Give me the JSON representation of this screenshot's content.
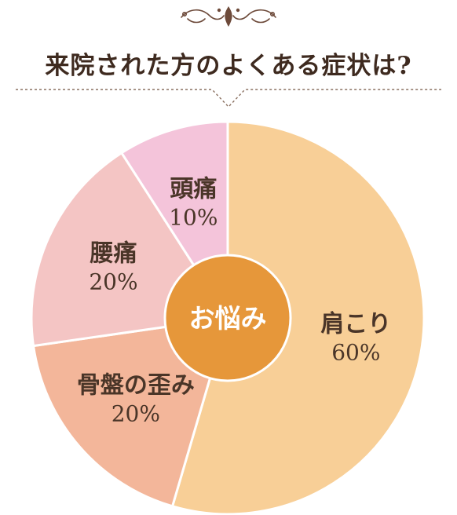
{
  "header": {
    "title": "来院された方のよくある症状は?"
  },
  "chart_data": {
    "type": "pie",
    "center_label": "お悩み",
    "slices": [
      {
        "label": "肩こり",
        "value": 60,
        "value_label": "60%",
        "color": "#f8cf97"
      },
      {
        "label": "骨盤の歪み",
        "value": 20,
        "value_label": "20%",
        "color": "#f3b69a"
      },
      {
        "label": "腰痛",
        "value": 20,
        "value_label": "20%",
        "color": "#f4c5c4"
      },
      {
        "label": "頭痛",
        "value": 10,
        "value_label": "10%",
        "color": "#f4c4da"
      }
    ],
    "center_color": "#e6973a",
    "accent_color": "#6d4a3a"
  }
}
